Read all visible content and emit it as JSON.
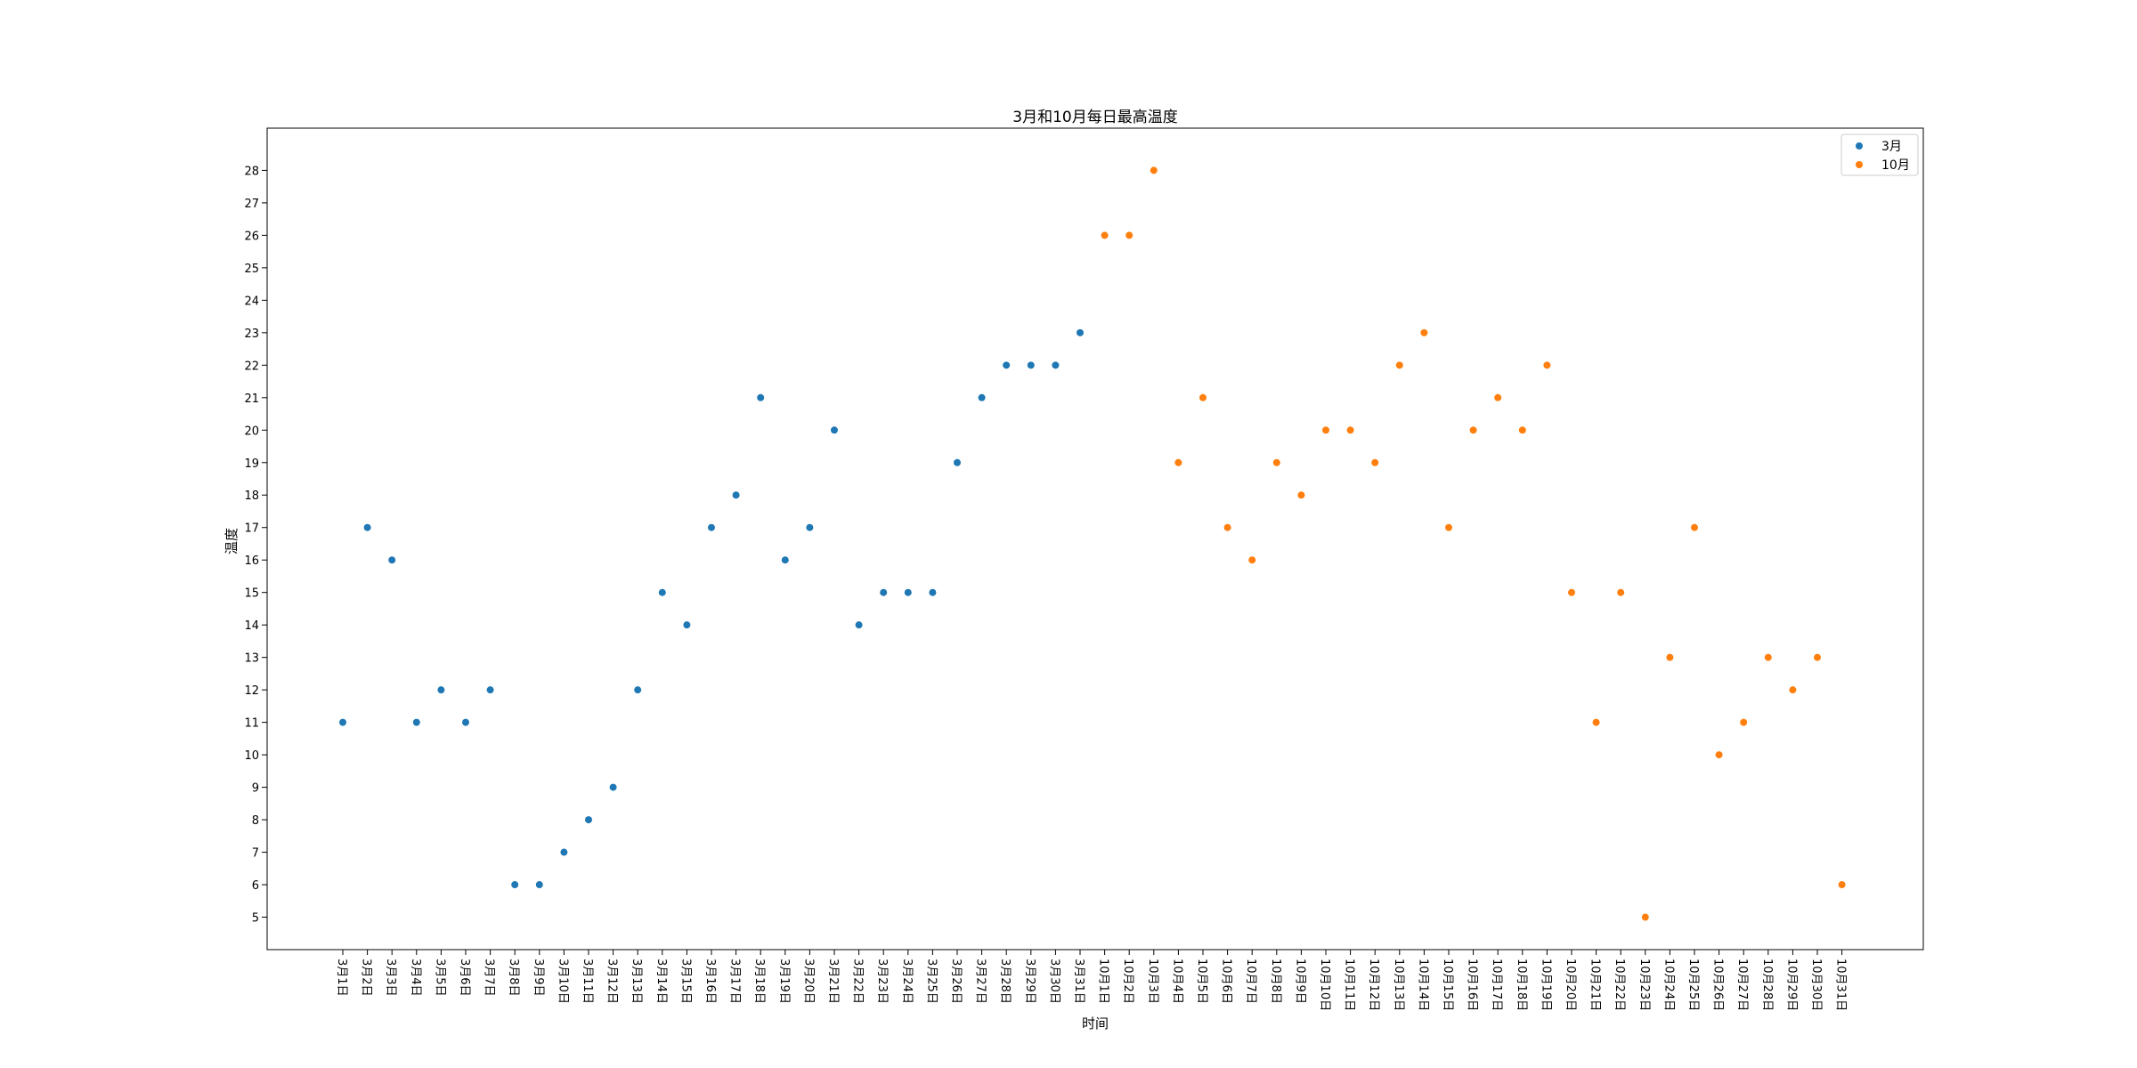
{
  "chart_data": {
    "type": "scatter",
    "title": "3月和10月每日最高温度",
    "xlabel": "时间",
    "ylabel": "温度",
    "ylim": [
      4,
      29.3
    ],
    "yticks": [
      5,
      6,
      7,
      8,
      9,
      10,
      11,
      12,
      13,
      14,
      15,
      16,
      17,
      18,
      19,
      20,
      21,
      22,
      23,
      24,
      25,
      26,
      27,
      28
    ],
    "grid": false,
    "legend_position": "upper right",
    "categories": [
      "3月1日",
      "3月2日",
      "3月3日",
      "3月4日",
      "3月5日",
      "3月6日",
      "3月7日",
      "3月8日",
      "3月9日",
      "3月10日",
      "3月11日",
      "3月12日",
      "3月13日",
      "3月14日",
      "3月15日",
      "3月16日",
      "3月17日",
      "3月18日",
      "3月19日",
      "3月20日",
      "3月21日",
      "3月22日",
      "3月23日",
      "3月24日",
      "3月25日",
      "3月26日",
      "3月27日",
      "3月28日",
      "3月29日",
      "3月30日",
      "3月31日",
      "10月1日",
      "10月2日",
      "10月3日",
      "10月4日",
      "10月5日",
      "10月6日",
      "10月7日",
      "10月8日",
      "10月9日",
      "10月10日",
      "10月11日",
      "10月12日",
      "10月13日",
      "10月14日",
      "10月15日",
      "10月16日",
      "10月17日",
      "10月18日",
      "10月19日",
      "10月20日",
      "10月21日",
      "10月22日",
      "10月23日",
      "10月24日",
      "10月25日",
      "10月26日",
      "10月27日",
      "10月28日",
      "10月29日",
      "10月30日",
      "10月31日"
    ],
    "series": [
      {
        "name": "3月",
        "color": "#1f77b4",
        "values": [
          11,
          17,
          16,
          11,
          12,
          11,
          12,
          6,
          6,
          7,
          8,
          9,
          12,
          15,
          14,
          17,
          18,
          21,
          16,
          17,
          20,
          14,
          15,
          15,
          15,
          19,
          21,
          22,
          22,
          22,
          23
        ]
      },
      {
        "name": "10月",
        "color": "#ff7f0e",
        "values": [
          26,
          26,
          28,
          19,
          21,
          17,
          16,
          19,
          18,
          20,
          20,
          19,
          22,
          23,
          17,
          20,
          21,
          20,
          22,
          15,
          11,
          15,
          5,
          13,
          17,
          10,
          11,
          13,
          12,
          13,
          6
        ]
      }
    ]
  }
}
